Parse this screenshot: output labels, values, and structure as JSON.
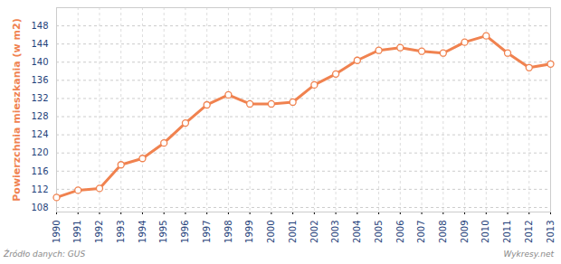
{
  "chart_data": {
    "type": "line",
    "y_label": "Powierzchnia mieszkania (w m2)",
    "source": "Źródło danych: GUS",
    "credit": "Wykresy.net",
    "x": [
      1990,
      1991,
      1992,
      1993,
      1994,
      1995,
      1996,
      1997,
      1998,
      1999,
      2000,
      2001,
      2002,
      2003,
      2004,
      2005,
      2006,
      2007,
      2008,
      2009,
      2010,
      2011,
      2012,
      2013
    ],
    "series": [
      {
        "name": "Powierzchnia mieszkania",
        "color": "#f0824f",
        "marker": "circle",
        "values": [
          110.2,
          111.8,
          112.2,
          117.4,
          118.8,
          122.2,
          126.6,
          130.6,
          132.8,
          130.8,
          130.8,
          131.2,
          135.0,
          137.4,
          140.4,
          142.6,
          143.2,
          142.4,
          142.0,
          144.4,
          145.8,
          142.0,
          138.8,
          139.6
        ]
      }
    ],
    "xlim": [
      1990,
      2013
    ],
    "xticks": [
      1990,
      1991,
      1992,
      1993,
      1994,
      1995,
      1996,
      1997,
      1998,
      1999,
      2000,
      2001,
      2002,
      2003,
      2004,
      2005,
      2006,
      2007,
      2008,
      2009,
      2010,
      2011,
      2012,
      2013
    ],
    "ylim": [
      107,
      152
    ],
    "yticks": [
      108,
      112,
      116,
      120,
      124,
      128,
      132,
      136,
      140,
      144,
      148
    ],
    "grid": true
  }
}
